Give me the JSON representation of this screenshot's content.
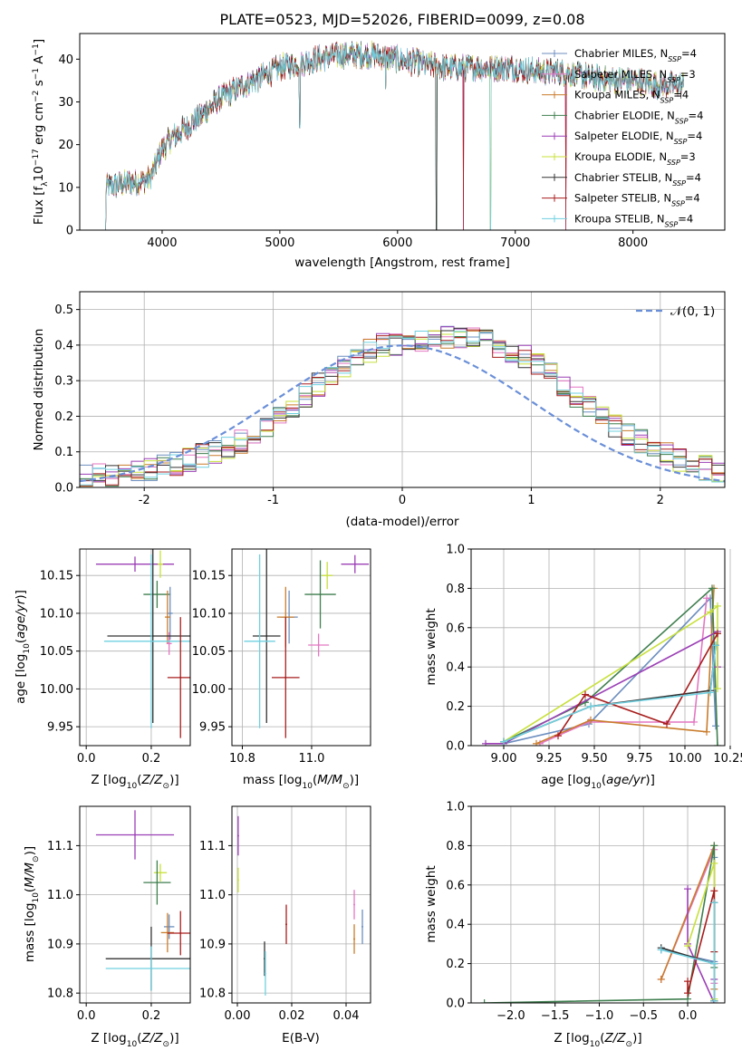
{
  "chart_data": [
    {
      "id": "spectrum",
      "type": "line",
      "title": "PLATE=0523, MJD=52026, FIBERID=0099, z=0.08",
      "xlabel": "wavelength [Angstrom, rest frame]",
      "ylabel": "Flux [f_λ10^-17 erg cm^-2 s^-1 A^-1]",
      "xlim": [
        3300,
        8780
      ],
      "ylim": [
        0,
        46
      ],
      "xticks": [
        4000,
        5000,
        6000,
        7000,
        8000
      ],
      "yticks": [
        0,
        10,
        20,
        30,
        40
      ],
      "grid": false,
      "legend": "top-right",
      "continuum_x": [
        3520,
        3700,
        3900,
        4000,
        4100,
        4300,
        4500,
        4700,
        4860,
        5000,
        5170,
        5300,
        5500,
        5800,
        6000,
        6200,
        6400,
        6600,
        6800,
        7000,
        7200,
        7400,
        7600,
        7800,
        8000,
        8200,
        8400
      ],
      "continuum_y": [
        10,
        11,
        12,
        19,
        22,
        26,
        31,
        34,
        36,
        38,
        39,
        40,
        41,
        41,
        40,
        39,
        38,
        38,
        38,
        38,
        37,
        37,
        36,
        35,
        35,
        34,
        34
      ],
      "dropouts": [
        {
          "x": 5170,
          "y": 24
        },
        {
          "x": 5900,
          "y": 33
        },
        {
          "x": 6330,
          "y": 0
        },
        {
          "x": 6560,
          "y": 0
        },
        {
          "x": 6790,
          "y": 0
        },
        {
          "x": 7430,
          "y": 0
        }
      ],
      "series": [
        {
          "name": "Chabrier MILES, N_SSP=4",
          "color": "#6c8ebf"
        },
        {
          "name": "Salpeter MILES, N_SSP=3",
          "color": "#e377c2"
        },
        {
          "name": "Kroupa MILES, N_SSP=4",
          "color": "#c97c2b"
        },
        {
          "name": "Chabrier ELODIE, N_SSP=4",
          "color": "#3f7f4f"
        },
        {
          "name": "Salpeter ELODIE, N_SSP=4",
          "color": "#9b3fb5"
        },
        {
          "name": "Kroupa ELODIE, N_SSP=3",
          "color": "#c8e03a"
        },
        {
          "name": "Chabrier STELIB, N_SSP=4",
          "color": "#333333"
        },
        {
          "name": "Salpeter STELIB, N_SSP=4",
          "color": "#a81d1d"
        },
        {
          "name": "Kroupa STELIB, N_SSP=4",
          "color": "#6fd0e0"
        }
      ]
    },
    {
      "id": "residuals",
      "type": "line",
      "xlabel": "(data-model)/error",
      "ylabel": "Normed distribution",
      "xlim": [
        -2.5,
        2.5
      ],
      "ylim": [
        0,
        0.55
      ],
      "xticks": [
        -2,
        -1,
        0,
        1,
        2
      ],
      "yticks": [
        0.0,
        0.1,
        0.2,
        0.3,
        0.4,
        0.5
      ],
      "grid": true,
      "legend": "top-right",
      "normal_label": "𝒩(0, 1)",
      "normal_color": "#6a8fd8",
      "bin_edges_start": -2.5,
      "bin_width": 0.1,
      "base_hist": [
        0.03,
        0.032,
        0.035,
        0.04,
        0.045,
        0.05,
        0.058,
        0.068,
        0.078,
        0.09,
        0.1,
        0.115,
        0.13,
        0.15,
        0.175,
        0.2,
        0.23,
        0.26,
        0.29,
        0.32,
        0.345,
        0.365,
        0.385,
        0.4,
        0.405,
        0.41,
        0.415,
        0.42,
        0.425,
        0.42,
        0.415,
        0.41,
        0.4,
        0.385,
        0.37,
        0.345,
        0.32,
        0.29,
        0.26,
        0.23,
        0.2,
        0.175,
        0.15,
        0.13,
        0.11,
        0.095,
        0.08,
        0.065,
        0.055,
        0.045
      ]
    },
    {
      "id": "age-vs-Z",
      "type": "scatter",
      "xlabel": "Z [log10(Z/Z⊙)]",
      "ylabel": "age [log10(age/yr)]",
      "xlim": [
        -0.02,
        0.32
      ],
      "ylim": [
        9.925,
        10.185
      ],
      "xticks": [
        0.0,
        0.2
      ],
      "yticks": [
        9.95,
        10.0,
        10.05,
        10.1,
        10.15
      ],
      "points": [
        {
          "x": 0.15,
          "y": 10.165,
          "xerr": 0.12,
          "yerr": 0.01,
          "s": 4
        },
        {
          "x": 0.228,
          "y": 10.165,
          "xerr": 0.008,
          "yerr": 0.018,
          "s": 5
        },
        {
          "x": 0.218,
          "y": 10.125,
          "xerr": 0.042,
          "yerr": 0.018,
          "s": 3
        },
        {
          "x": 0.258,
          "y": 10.1,
          "xerr": 0.008,
          "yerr": 0.035,
          "s": 0
        },
        {
          "x": 0.25,
          "y": 10.095,
          "xerr": 0.008,
          "yerr": 0.035,
          "s": 2
        },
        {
          "x": 0.255,
          "y": 10.06,
          "xerr": 0.008,
          "yerr": 0.015,
          "s": 1
        },
        {
          "x": 0.205,
          "y": 10.07,
          "xerr": 0.14,
          "yerr": 0.115,
          "s": 6
        },
        {
          "x": 0.2,
          "y": 10.063,
          "xerr": 0.145,
          "yerr": 0.115,
          "s": 8
        },
        {
          "x": 0.29,
          "y": 10.015,
          "xerr": 0.04,
          "yerr": 0.08,
          "s": 7
        }
      ]
    },
    {
      "id": "age-vs-mass",
      "type": "scatter",
      "xlabel": "mass [log10(M/M⊙)]",
      "ylabel": "",
      "xlim": [
        10.77,
        11.17
      ],
      "ylim": [
        9.925,
        10.185
      ],
      "xticks": [
        10.8,
        11.0
      ],
      "yticks": [
        9.95,
        10.0,
        10.05,
        10.1,
        10.15
      ],
      "points": [
        {
          "x": 11.125,
          "y": 10.165,
          "xerr": 0.04,
          "yerr": 0.012,
          "s": 4
        },
        {
          "x": 11.045,
          "y": 10.15,
          "xerr": 0.016,
          "yerr": 0.018,
          "s": 5
        },
        {
          "x": 11.025,
          "y": 10.125,
          "xerr": 0.045,
          "yerr": 0.045,
          "s": 3
        },
        {
          "x": 10.935,
          "y": 10.095,
          "xerr": 0.025,
          "yerr": 0.035,
          "s": 0
        },
        {
          "x": 10.925,
          "y": 10.095,
          "xerr": 0.025,
          "yerr": 0.04,
          "s": 2
        },
        {
          "x": 11.02,
          "y": 10.058,
          "xerr": 0.03,
          "yerr": 0.015,
          "s": 1
        },
        {
          "x": 10.87,
          "y": 10.07,
          "xerr": 0.04,
          "yerr": 0.115,
          "s": 6
        },
        {
          "x": 10.85,
          "y": 10.063,
          "xerr": 0.045,
          "yerr": 0.115,
          "s": 8
        },
        {
          "x": 10.925,
          "y": 10.015,
          "xerr": 0.04,
          "yerr": 0.08,
          "s": 7
        }
      ]
    },
    {
      "id": "mass-vs-Z",
      "type": "scatter",
      "xlabel": "Z [log10(Z/Z⊙)]",
      "ylabel": "mass [log10(M/M⊙)]",
      "xlim": [
        -0.02,
        0.32
      ],
      "ylim": [
        10.78,
        11.18
      ],
      "xticks": [
        0.0,
        0.2
      ],
      "yticks": [
        10.8,
        10.9,
        11.0,
        11.1
      ],
      "points": [
        {
          "x": 0.15,
          "y": 11.122,
          "xerr": 0.12,
          "yerr": 0.05,
          "s": 4
        },
        {
          "x": 0.228,
          "y": 11.045,
          "xerr": 0.02,
          "yerr": 0.018,
          "s": 5
        },
        {
          "x": 0.218,
          "y": 11.025,
          "xerr": 0.042,
          "yerr": 0.045,
          "s": 3
        },
        {
          "x": 0.255,
          "y": 10.935,
          "xerr": 0.016,
          "yerr": 0.025,
          "s": 0
        },
        {
          "x": 0.25,
          "y": 10.923,
          "xerr": 0.02,
          "yerr": 0.04,
          "s": 2
        },
        {
          "x": 0.29,
          "y": 10.922,
          "xerr": 0.04,
          "yerr": 0.045,
          "s": 7
        },
        {
          "x": 0.2,
          "y": 10.87,
          "xerr": 0.14,
          "yerr": 0.065,
          "s": 6
        },
        {
          "x": 0.2,
          "y": 10.85,
          "xerr": 0.14,
          "yerr": 0.045,
          "s": 8
        }
      ]
    },
    {
      "id": "ebv",
      "type": "scatter",
      "xlabel": "E(B-V)",
      "ylabel": "",
      "xlim": [
        -0.002,
        0.049
      ],
      "ylim": [
        10.78,
        11.18
      ],
      "xticks": [
        0.0,
        0.02,
        0.04
      ],
      "yticks": [
        10.8,
        10.9,
        11.0,
        11.1
      ],
      "points": [
        {
          "x": 0.0003,
          "y": 11.12,
          "yerr": 0.04,
          "s": 4
        },
        {
          "x": 0.0003,
          "y": 11.03,
          "yerr": 0.025,
          "s": 5
        },
        {
          "x": 0.01,
          "y": 10.87,
          "yerr": 0.035,
          "s": 6
        },
        {
          "x": 0.0103,
          "y": 10.84,
          "yerr": 0.045,
          "s": 8
        },
        {
          "x": 0.018,
          "y": 10.94,
          "yerr": 0.04,
          "s": 7
        },
        {
          "x": 0.043,
          "y": 10.98,
          "yerr": 0.03,
          "s": 1
        },
        {
          "x": 0.043,
          "y": 10.91,
          "yerr": 0.03,
          "s": 2
        },
        {
          "x": 0.046,
          "y": 10.935,
          "yerr": 0.035,
          "s": 0
        }
      ]
    },
    {
      "id": "weight-vs-age",
      "type": "line",
      "xlabel": "age [log10(age/yr)]",
      "ylabel": "mass weight",
      "xlim": [
        8.82,
        10.22
      ],
      "ylim": [
        0,
        1
      ],
      "xticks": [
        9.0,
        9.25,
        9.5,
        9.75,
        10.0,
        10.25
      ],
      "yticks": [
        0.0,
        0.2,
        0.4,
        0.6,
        0.8,
        1.0
      ],
      "grid": true,
      "series": [
        {
          "s": 0,
          "x": [
            9.0,
            9.47,
            10.14,
            10.17
          ],
          "y": [
            0.01,
            0.11,
            0.75,
            0.1
          ]
        },
        {
          "s": 1,
          "x": [
            9.2,
            9.47,
            10.05,
            10.12
          ],
          "y": [
            0.01,
            0.12,
            0.12,
            0.75
          ]
        },
        {
          "s": 2,
          "x": [
            9.18,
            9.48,
            10.12,
            10.16
          ],
          "y": [
            0.01,
            0.13,
            0.07,
            0.8
          ]
        },
        {
          "s": 3,
          "x": [
            9.0,
            9.45,
            10.15,
            10.18
          ],
          "y": [
            0.02,
            0.22,
            0.8,
            0.0
          ]
        },
        {
          "s": 4,
          "x": [
            8.9,
            9.0,
            10.18,
            10.18
          ],
          "y": [
            0.01,
            0.01,
            0.58,
            0.4
          ]
        },
        {
          "s": 5,
          "x": [
            9.0,
            10.14,
            10.18,
            10.18
          ],
          "y": [
            0.02,
            0.68,
            0.71,
            0.29
          ]
        },
        {
          "s": 6,
          "x": [
            9.0,
            9.48,
            10.14,
            10.17
          ],
          "y": [
            0.02,
            0.2,
            0.28,
            0.51
          ]
        },
        {
          "s": 7,
          "x": [
            9.3,
            9.45,
            9.9,
            10.18
          ],
          "y": [
            0.05,
            0.26,
            0.11,
            0.57
          ]
        },
        {
          "s": 8,
          "x": [
            9.0,
            9.48,
            10.14,
            10.17
          ],
          "y": [
            0.02,
            0.2,
            0.27,
            0.51
          ]
        }
      ]
    },
    {
      "id": "weight-vs-Z",
      "type": "line",
      "xlabel": "Z [log10(Z/Z⊙)]",
      "ylabel": "mass weight",
      "xlim": [
        -2.45,
        0.42
      ],
      "ylim": [
        0,
        1
      ],
      "xticks": [
        -2.0,
        -1.5,
        -1.0,
        -0.5,
        0.0
      ],
      "yticks": [
        0.0,
        0.2,
        0.4,
        0.6,
        0.8,
        1.0
      ],
      "grid": true,
      "series": [
        {
          "s": 0,
          "x": [
            -0.3,
            0.3,
            0.3,
            0.3
          ],
          "y": [
            0.27,
            0.21,
            0.01,
            0.74
          ]
        },
        {
          "s": 1,
          "x": [
            -0.3,
            0.3,
            0.3
          ],
          "y": [
            0.12,
            0.78,
            0.1
          ]
        },
        {
          "s": 2,
          "x": [
            -0.3,
            0.3,
            0.3,
            0.3
          ],
          "y": [
            0.12,
            0.8,
            0.07,
            0.01
          ]
        },
        {
          "s": 3,
          "x": [
            -2.3,
            0.0,
            0.3,
            0.3
          ],
          "y": [
            0.0,
            0.02,
            0.8,
            0.18
          ]
        },
        {
          "s": 4,
          "x": [
            0.0,
            0.0,
            0.3,
            0.3
          ],
          "y": [
            0.58,
            0.3,
            0.0,
            0.12
          ]
        },
        {
          "s": 5,
          "x": [
            0.0,
            0.3,
            0.3
          ],
          "y": [
            0.29,
            0.71,
            0.02
          ]
        },
        {
          "s": 6,
          "x": [
            -0.3,
            0.3,
            0.3,
            0.3
          ],
          "y": [
            0.28,
            0.2,
            0.51,
            0.01
          ]
        },
        {
          "s": 7,
          "x": [
            0.0,
            0.0,
            0.3,
            0.3
          ],
          "y": [
            0.11,
            0.05,
            0.57,
            0.26
          ]
        },
        {
          "s": 8,
          "x": [
            -0.3,
            0.3,
            0.3,
            0.3
          ],
          "y": [
            0.27,
            0.2,
            0.51,
            0.01
          ]
        }
      ]
    }
  ]
}
